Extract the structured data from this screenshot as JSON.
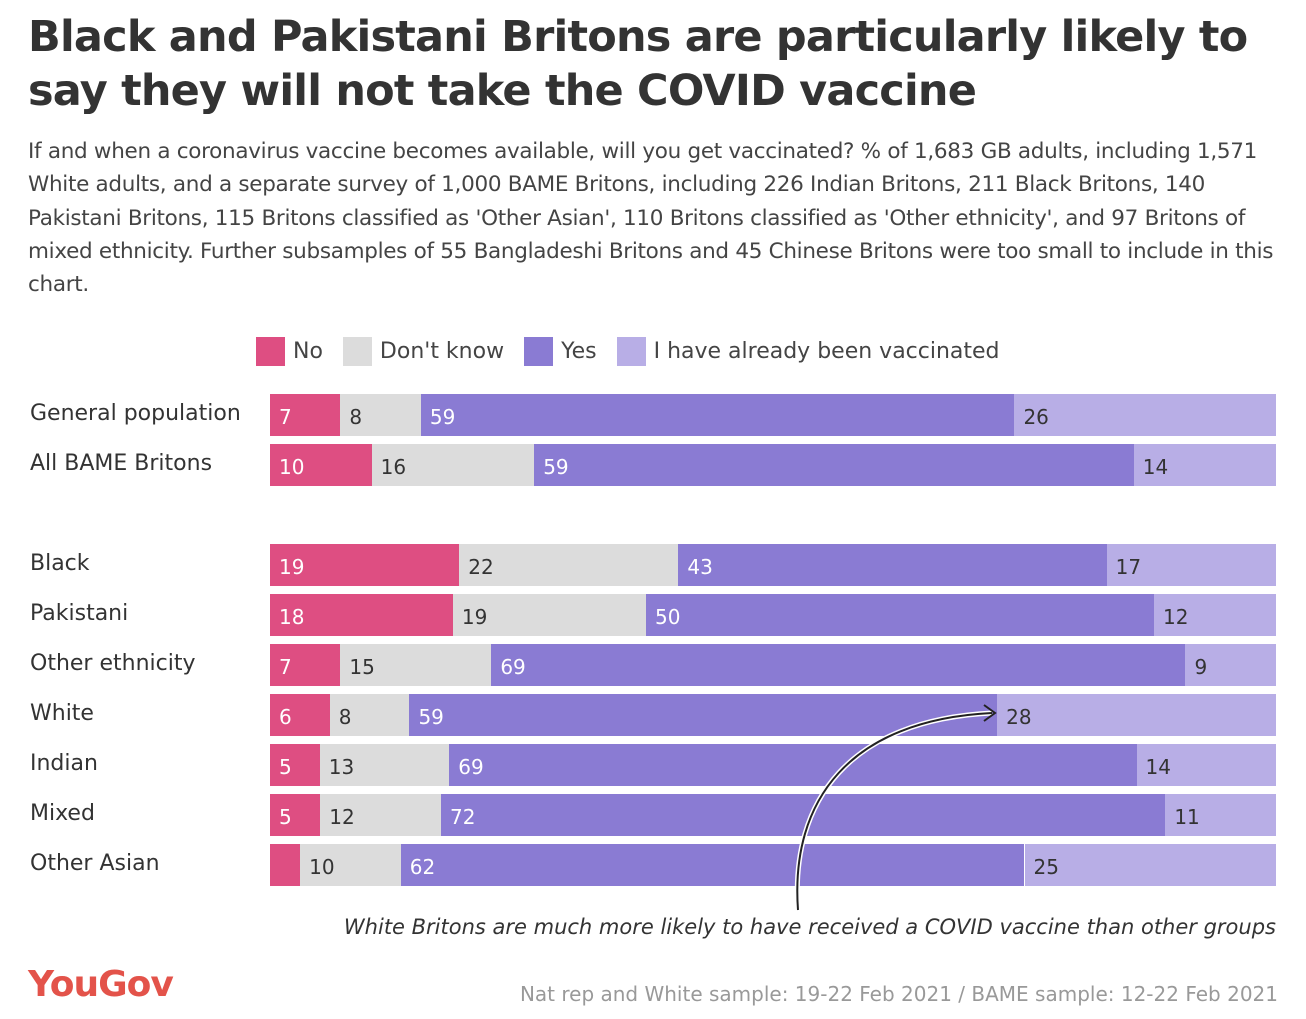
{
  "title": "Black and Pakistani Britons are particularly likely to say they will not take the COVID vaccine",
  "subtitle": "If and when a coronavirus vaccine becomes available, will you get vaccinated? % of 1,683 GB adults, including 1,571 White adults, and a separate survey of 1,000 BAME Britons, including 226 Indian Britons, 211 Black Britons, 140 Pakistani Britons, 115 Britons classified as 'Other Asian', 110 Britons classified as 'Other ethnicity', and 97 Britons of mixed ethnicity. Further subsamples of 55 Bangladeshi Britons and 45 Chinese Britons were too small to include in this chart.",
  "annotation": "White Britons are much more likely to have received a COVID vaccine than other groups",
  "logo": "YouGov",
  "footer": "Nat rep and White sample: 19-22 Feb 2021 / BAME sample: 12-22 Feb 2021",
  "chart_data": {
    "type": "bar",
    "orientation": "horizontal-stacked",
    "title": "Black and Pakistani Britons are particularly likely to say they will not take the COVID vaccine",
    "categories": [
      "General population",
      "All BAME Britons",
      "Black",
      "Pakistani",
      "Other ethnicity",
      "White",
      "Indian",
      "Mixed",
      "Other Asian"
    ],
    "series": [
      {
        "name": "No",
        "color": "#de4e82",
        "text_color": "#ffffff",
        "values": [
          7,
          10,
          19,
          18,
          7,
          6,
          5,
          5,
          3
        ],
        "labels": [
          "7",
          "10",
          "19",
          "18",
          "7",
          "6",
          "5",
          "5",
          ""
        ]
      },
      {
        "name": "Don't know",
        "color": "#dcdcdc",
        "text_color": "#333333",
        "values": [
          8,
          16,
          22,
          19,
          15,
          8,
          13,
          12,
          10
        ],
        "labels": [
          "8",
          "16",
          "22",
          "19",
          "15",
          "8",
          "13",
          "12",
          "10"
        ]
      },
      {
        "name": "Yes",
        "color": "#8a7bd3",
        "text_color": "#ffffff",
        "values": [
          59,
          59,
          43,
          50,
          69,
          59,
          69,
          72,
          62
        ],
        "labels": [
          "59",
          "59",
          "43",
          "50",
          "69",
          "59",
          "69",
          "72",
          "62"
        ]
      },
      {
        "name": "I have already been vaccinated",
        "color": "#b8aee6",
        "text_color": "#333333",
        "values": [
          26,
          14,
          17,
          12,
          9,
          28,
          14,
          11,
          25
        ],
        "labels": [
          "26",
          "14",
          "17",
          "12",
          "9",
          "28",
          "14",
          "11",
          "25"
        ]
      }
    ],
    "xlim": [
      0,
      100
    ],
    "legend": "top"
  }
}
